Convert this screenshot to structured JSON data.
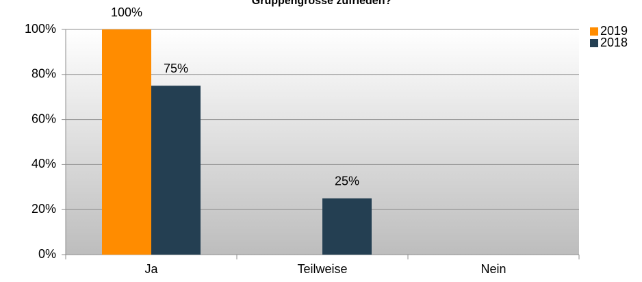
{
  "chart_data": {
    "type": "bar",
    "title": "Gruppengrösse zufrieden?",
    "categories": [
      "Ja",
      "Teilweise",
      "Nein"
    ],
    "series": [
      {
        "name": "2019",
        "color": "#ff8c00",
        "values": [
          100,
          0,
          0
        ],
        "value_labels": [
          "100%",
          null,
          null
        ]
      },
      {
        "name": "2018",
        "color": "#243f52",
        "values": [
          75,
          25,
          0
        ],
        "value_labels": [
          "75%",
          "25%",
          null
        ]
      }
    ],
    "ylim": [
      0,
      100
    ],
    "yticks": [
      {
        "value": 0,
        "label": "0%"
      },
      {
        "value": 20,
        "label": "20%"
      },
      {
        "value": 40,
        "label": "40%"
      },
      {
        "value": 60,
        "label": "60%"
      },
      {
        "value": 80,
        "label": "80%"
      },
      {
        "value": 100,
        "label": "100%"
      }
    ],
    "grid": true,
    "legend": "right"
  }
}
